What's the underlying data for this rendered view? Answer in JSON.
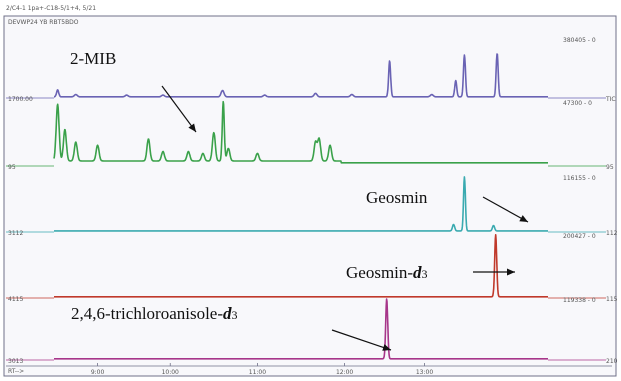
{
  "chart_data": {
    "type": "line",
    "header": [
      "2/C4-1  1pa+-C18-5/1+4, 5/21",
      "DEVWP24  YB  RBT5BDO"
    ],
    "xlim": [
      8.0,
      14.8
    ],
    "x_ticks": [
      "9:00",
      "10:00",
      "11:00",
      "12:00",
      "13:00"
    ],
    "x_tick_values": [
      8.6,
      9.6,
      10.8,
      12.0,
      13.1
    ],
    "x_axis_corner": "RT-->",
    "series": [
      {
        "color": "#6a63b4",
        "left_label": "1700.00",
        "right_top_label": "380405 - 0",
        "right_label": "TIC",
        "baseline": 0.02,
        "peaks": [
          [
            8.05,
            0.12,
            0.015
          ],
          [
            8.3,
            0.04,
            0.02
          ],
          [
            9.0,
            0.03,
            0.02
          ],
          [
            9.5,
            0.03,
            0.02
          ],
          [
            10.32,
            0.11,
            0.02
          ],
          [
            10.9,
            0.03,
            0.02
          ],
          [
            11.6,
            0.06,
            0.02
          ],
          [
            12.1,
            0.04,
            0.02
          ],
          [
            12.62,
            0.62,
            0.014
          ],
          [
            13.2,
            0.04,
            0.02
          ],
          [
            13.53,
            0.28,
            0.014
          ],
          [
            13.65,
            0.72,
            0.014
          ],
          [
            14.1,
            0.75,
            0.014
          ]
        ]
      },
      {
        "color": "#3aa14a",
        "left_label": "95",
        "right_top_label": "47300 - 0",
        "right_label": "95",
        "baseline": 0.05,
        "steps": [
          [
            8.0,
            0.08
          ],
          [
            11.95,
            0.05
          ],
          [
            14.8,
            0.05
          ]
        ],
        "peaks": [
          [
            8.05,
            0.9,
            0.02
          ],
          [
            8.15,
            0.5,
            0.02
          ],
          [
            8.3,
            0.3,
            0.02
          ],
          [
            8.6,
            0.25,
            0.02
          ],
          [
            9.3,
            0.35,
            0.02
          ],
          [
            9.5,
            0.15,
            0.02
          ],
          [
            9.85,
            0.15,
            0.02
          ],
          [
            10.05,
            0.12,
            0.02
          ],
          [
            10.2,
            0.45,
            0.02
          ],
          [
            10.33,
            0.95,
            0.014
          ],
          [
            10.4,
            0.2,
            0.02
          ],
          [
            10.8,
            0.12,
            0.02
          ],
          [
            11.6,
            0.3,
            0.02
          ],
          [
            11.65,
            0.35,
            0.02
          ],
          [
            11.8,
            0.25,
            0.02
          ]
        ]
      },
      {
        "color": "#3aaab0",
        "left_label": "3112",
        "right_top_label": "116155 - 0",
        "right_label": "112",
        "baseline": 0.02,
        "peaks": [
          [
            13.5,
            0.12,
            0.015
          ],
          [
            13.65,
            1.0,
            0.013
          ],
          [
            14.05,
            0.1,
            0.015
          ]
        ]
      },
      {
        "color": "#c0392b",
        "left_label": "4115",
        "right_top_label": "200427 - 0",
        "right_label": "115",
        "baseline": 0.02,
        "peaks": [
          [
            14.08,
            1.0,
            0.014
          ]
        ]
      },
      {
        "color": "#a7368a",
        "left_label": "3013",
        "right_top_label": "119338 - 0",
        "right_label": "210",
        "baseline": 0.02,
        "peaks": [
          [
            12.58,
            1.0,
            0.014
          ]
        ]
      }
    ],
    "annotations": [
      {
        "text": "2-MIB",
        "series": 1,
        "target_x": 10.3
      },
      {
        "text": "Geosmin",
        "series": 2,
        "target_x": 14.05
      },
      {
        "text": "Geosmin-",
        "italic": "d",
        "sub": "3",
        "series": 3,
        "target_x": 13.95
      },
      {
        "text": "2,4,6-trichloroanisole-",
        "italic": "d",
        "sub": "3",
        "series": 4,
        "target_x": 12.55
      }
    ]
  }
}
